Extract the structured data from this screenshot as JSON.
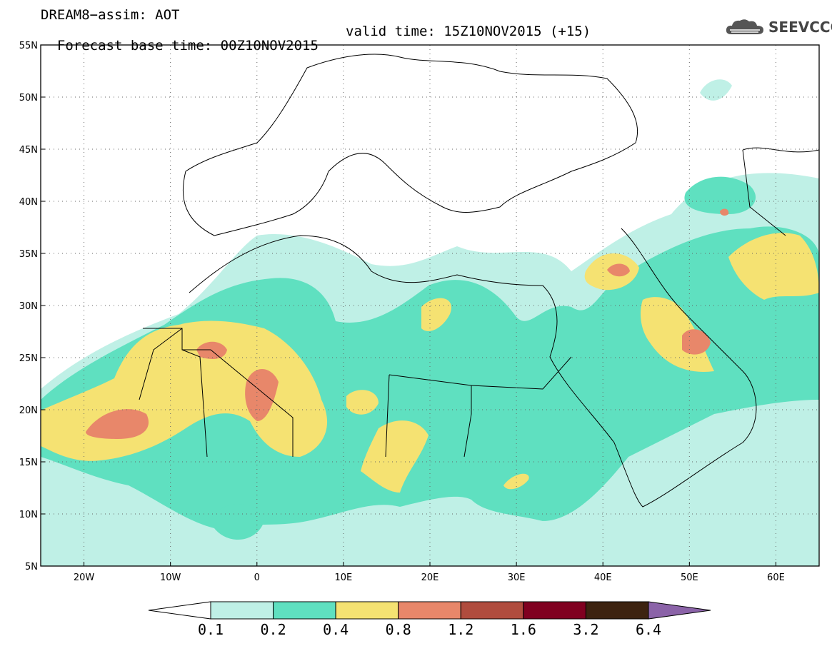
{
  "header": {
    "title_line1": "DREAM8−assim: AOT",
    "forecast_base": "Forecast base time: 00Z10NOV2015",
    "valid_time": "valid time: 15Z10NOV2015 (+15)"
  },
  "logo": {
    "text": "SEEVCCC",
    "icon": "cloud-icon"
  },
  "map": {
    "lon_range": [
      -25,
      65
    ],
    "lat_range": [
      5,
      55
    ],
    "lat_ticks": [
      "5N",
      "10N",
      "15N",
      "20N",
      "25N",
      "30N",
      "35N",
      "40N",
      "45N",
      "50N",
      "55N"
    ],
    "lon_ticks": [
      "20W",
      "10W",
      "0",
      "10E",
      "20E",
      "30E",
      "40E",
      "50E",
      "60E"
    ],
    "grid": "dotted"
  },
  "colorbar": {
    "labels": [
      "0.1",
      "0.2",
      "0.4",
      "0.8",
      "1.2",
      "1.6",
      "3.2",
      "6.4"
    ],
    "colors": [
      "#ffffff",
      "#bff0e6",
      "#5fe0c0",
      "#f5e272",
      "#e8876a",
      "#b04c3e",
      "#800020",
      "#3d2310",
      "#8b63a8"
    ]
  }
}
